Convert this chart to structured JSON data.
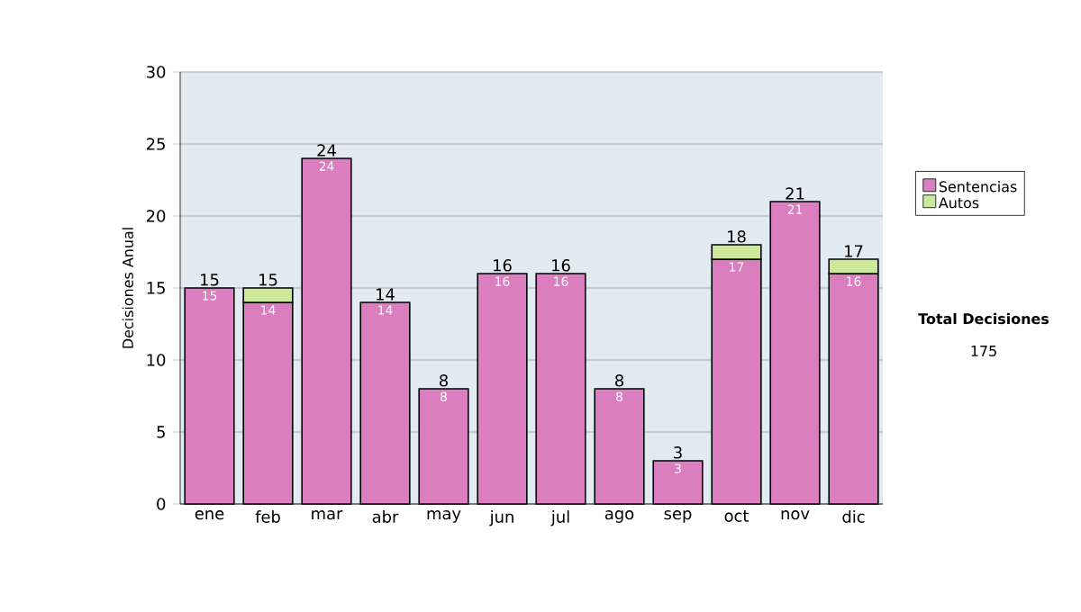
{
  "chart_data": {
    "type": "bar",
    "stacked": true,
    "ylabel": "Decisiones Anual",
    "categories": [
      "ene",
      "feb",
      "mar",
      "abr",
      "may",
      "jun",
      "jul",
      "ago",
      "sep",
      "oct",
      "nov",
      "dic"
    ],
    "series": [
      {
        "name": "Sentencias",
        "color": "#da7ec0",
        "values": [
          15,
          14,
          24,
          14,
          8,
          16,
          16,
          8,
          3,
          17,
          21,
          16
        ],
        "value_labels": [
          "15",
          "14",
          "24",
          "14",
          "8",
          "16",
          "16",
          "8",
          "3",
          "17",
          "21",
          "16"
        ]
      },
      {
        "name": "Autos",
        "color": "#cce89a",
        "values": [
          null,
          1,
          null,
          null,
          null,
          null,
          null,
          null,
          null,
          1,
          null,
          1
        ]
      }
    ],
    "totals": [
      "15",
      "15",
      "24",
      "14",
      "8",
      "16",
      "16",
      "8",
      "3",
      "18",
      "21",
      "17"
    ],
    "ylim": [
      0,
      30
    ],
    "yticks": [
      0,
      5,
      10,
      15,
      20,
      25,
      30
    ],
    "grid": "y",
    "legend": "right",
    "annotations": [
      "Total Decisiones",
      "175"
    ]
  }
}
